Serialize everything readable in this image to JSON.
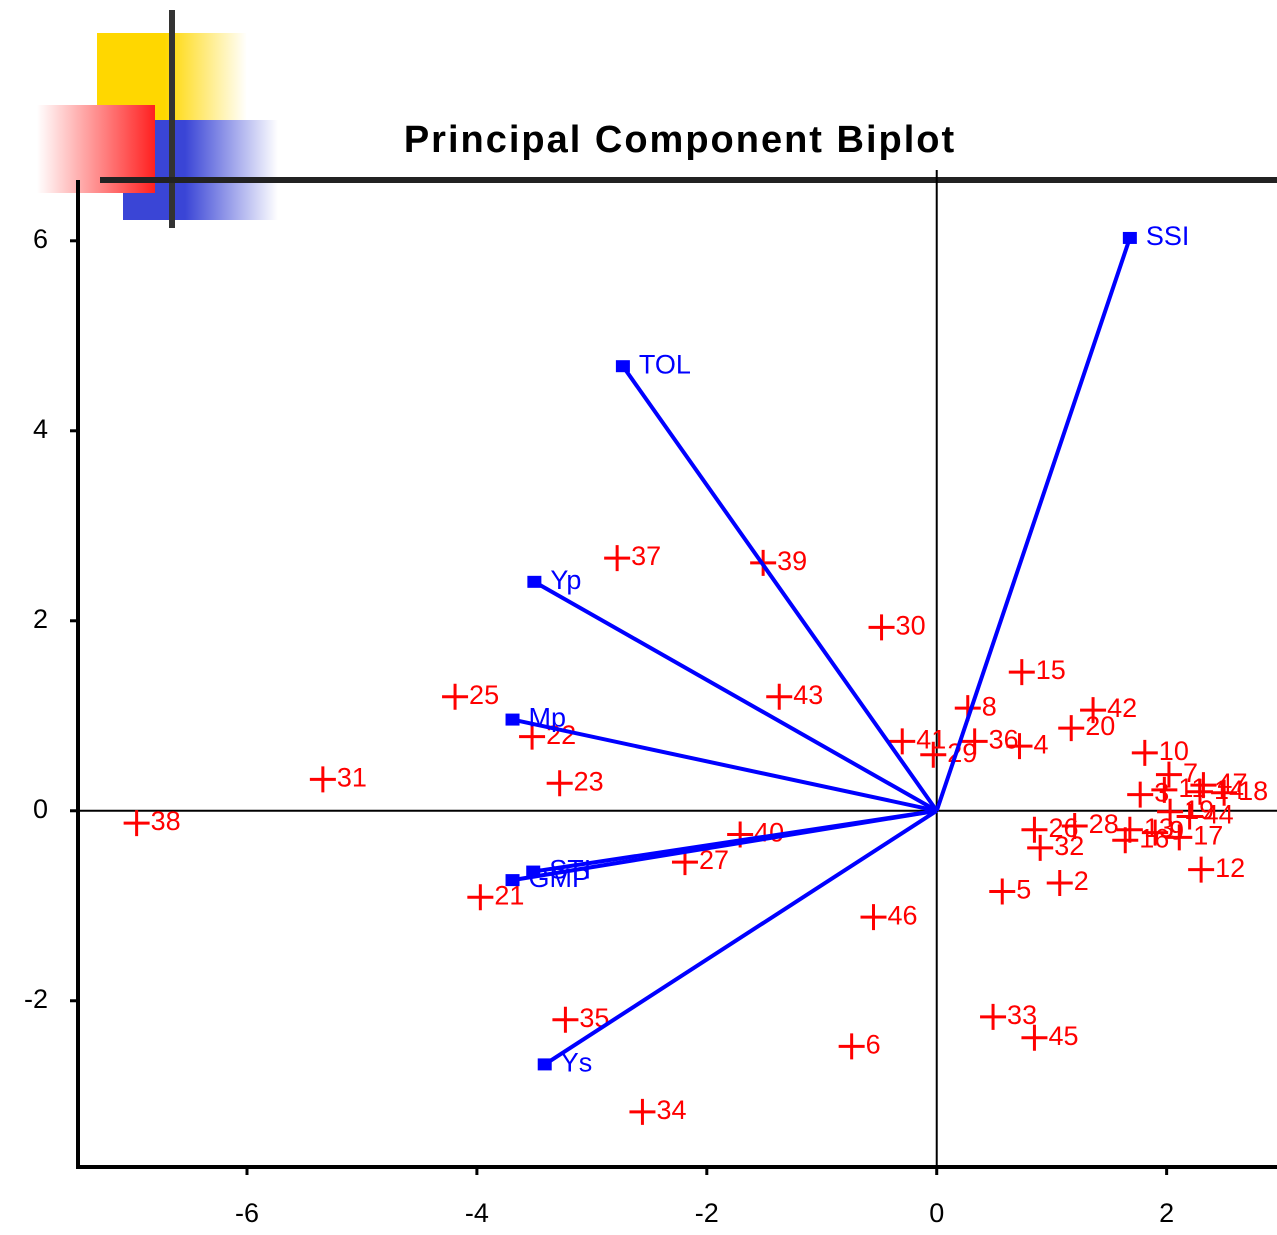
{
  "chart_data": {
    "type": "biplot",
    "title": "Principal Component Biplot",
    "xlim": [
      -7.47,
      2.96
    ],
    "ylim": [
      -3.75,
      6.64
    ],
    "xticks": [
      -6,
      -4,
      -2,
      0,
      2
    ],
    "yticks": [
      -2,
      0,
      2,
      4,
      6
    ],
    "series": [
      {
        "color": "#ff0000",
        "marker": "plus",
        "labels": [
          "38",
          "31",
          "25",
          "22",
          "23",
          "21",
          "37",
          "35",
          "34",
          "39",
          "43",
          "40",
          "27",
          "30",
          "41",
          "29",
          "46",
          "6",
          "8",
          "36",
          "4",
          "15",
          "42",
          "20",
          "10",
          "5",
          "2",
          "33",
          "45",
          "12",
          "18",
          "44",
          "17",
          "26",
          "28",
          "32",
          "7",
          "47",
          "3",
          "11",
          "14",
          "9",
          "13",
          "16",
          "19"
        ],
        "x": [
          -6.96,
          -5.34,
          -4.19,
          -3.52,
          -3.28,
          -3.97,
          -2.78,
          -3.23,
          -2.56,
          -1.51,
          -1.37,
          -1.71,
          -2.19,
          -0.48,
          -0.3,
          -0.03,
          -0.55,
          -0.74,
          0.27,
          0.33,
          0.72,
          0.74,
          1.36,
          1.17,
          1.81,
          0.57,
          1.07,
          0.49,
          0.85,
          2.3,
          2.5,
          2.2,
          2.11,
          0.85,
          1.2,
          0.9,
          2.02,
          2.32,
          1.77,
          1.98,
          2.29,
          1.9,
          1.68,
          1.64,
          2.03
        ],
        "y": [
          -0.13,
          0.33,
          1.2,
          0.78,
          0.29,
          -0.91,
          2.66,
          -2.2,
          -3.17,
          2.61,
          1.2,
          -0.25,
          -0.54,
          1.93,
          0.73,
          0.59,
          -1.12,
          -2.48,
          1.08,
          0.73,
          0.68,
          1.46,
          1.06,
          0.87,
          0.61,
          -0.85,
          -0.76,
          -2.17,
          -2.39,
          -0.62,
          0.19,
          -0.06,
          -0.28,
          -0.2,
          -0.16,
          -0.39,
          0.38,
          0.27,
          0.17,
          0.22,
          0.2,
          -0.23,
          -0.2,
          -0.31,
          -0.01
        ]
      },
      {
        "color": "#0000ff",
        "marker": "vector",
        "labels": [
          "SSI",
          "TOL",
          "Yp",
          "Mp",
          "STI",
          "GMP",
          "Ys"
        ],
        "x": [
          1.68,
          -2.73,
          -3.5,
          -3.69,
          -3.51,
          -3.69,
          -3.41
        ],
        "y": [
          6.03,
          4.68,
          2.41,
          0.96,
          -0.64,
          -0.73,
          -2.67
        ]
      }
    ]
  }
}
